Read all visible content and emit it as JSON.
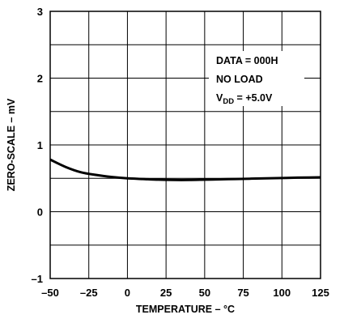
{
  "chart_data": {
    "type": "line",
    "xlabel": "TEMPERATURE – °C",
    "ylabel": "ZERO-SCALE – mV",
    "xlim": [
      -50,
      125
    ],
    "ylim": [
      -1,
      3
    ],
    "x_ticks": [
      -50,
      -25,
      0,
      25,
      50,
      75,
      100,
      125
    ],
    "y_ticks": [
      -1,
      0,
      1,
      2,
      3
    ],
    "x_tick_labels": [
      "–50",
      "–25",
      "0",
      "25",
      "50",
      "75",
      "100",
      "125"
    ],
    "y_tick_labels": [
      "–1",
      "0",
      "1",
      "2",
      "3"
    ],
    "grid": true,
    "series": [
      {
        "x": [
          -50,
          -40,
          -30,
          -20,
          -10,
          0,
          10,
          20,
          30,
          40,
          50,
          60,
          70,
          80,
          90,
          100,
          110,
          125
        ],
        "y": [
          0.78,
          0.67,
          0.59,
          0.55,
          0.52,
          0.5,
          0.49,
          0.48,
          0.475,
          0.475,
          0.48,
          0.485,
          0.49,
          0.495,
          0.5,
          0.505,
          0.51,
          0.515
        ]
      }
    ],
    "annotations": {
      "line1": "DATA = 000H",
      "line2": "NO LOAD",
      "line3_main": "V",
      "line3_sub": "DD",
      "line3_rest": " = +5.0V"
    }
  }
}
